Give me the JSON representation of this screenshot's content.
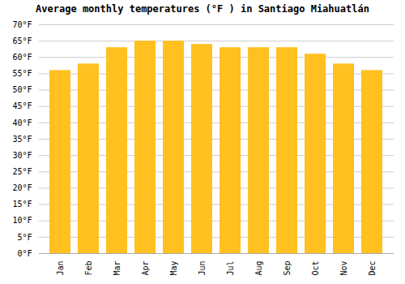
{
  "chart_data": {
    "type": "bar",
    "title": "Average monthly temperatures (°F ) in Santiago Miahuatlán",
    "categories": [
      "Jan",
      "Feb",
      "Mar",
      "Apr",
      "May",
      "Jun",
      "Jul",
      "Aug",
      "Sep",
      "Oct",
      "Nov",
      "Dec"
    ],
    "values": [
      56,
      58,
      63,
      65,
      65,
      64,
      63,
      63,
      63,
      61,
      58,
      56
    ],
    "color": "#FFC020",
    "ylim": [
      0,
      70
    ],
    "yticks": [
      {
        "value": 0,
        "label": "0°F"
      },
      {
        "value": 5,
        "label": "5°F"
      },
      {
        "value": 10,
        "label": "10°F"
      },
      {
        "value": 15,
        "label": "15°F"
      },
      {
        "value": 20,
        "label": "20°F"
      },
      {
        "value": 25,
        "label": "25°F"
      },
      {
        "value": 30,
        "label": "30°F"
      },
      {
        "value": 35,
        "label": "35°F"
      },
      {
        "value": 40,
        "label": "40°F"
      },
      {
        "value": 45,
        "label": "45°F"
      },
      {
        "value": 50,
        "label": "50°F"
      },
      {
        "value": 55,
        "label": "55°F"
      },
      {
        "value": 60,
        "label": "60°F"
      },
      {
        "value": 65,
        "label": "65°F"
      },
      {
        "value": 70,
        "label": "70°F"
      }
    ],
    "grid": true
  }
}
